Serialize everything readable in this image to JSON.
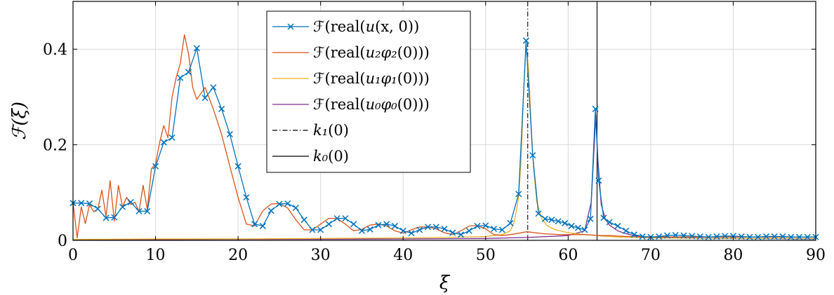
{
  "chart_data": {
    "type": "line",
    "xlabel": "ξ",
    "ylabel": "ℱ(ξ)",
    "xlim": [
      0,
      90
    ],
    "ylim": [
      0,
      0.5
    ],
    "xticks": [
      0,
      10,
      20,
      30,
      40,
      50,
      60,
      70,
      80,
      90
    ],
    "yticks": [
      0,
      0.2,
      0.4
    ],
    "ytick_labels": [
      "0",
      "0.2",
      "0.4"
    ],
    "grid": true,
    "legend_position": "top-center",
    "series": [
      {
        "name": "ℱ(real(u(x,0))",
        "color": "#0072bd",
        "marker": "x",
        "x": [
          0,
          1,
          2,
          3,
          4,
          5,
          6,
          7,
          8,
          9,
          10,
          11,
          12,
          13,
          14,
          15,
          16,
          17,
          18,
          19,
          20,
          21,
          22,
          23,
          24,
          25,
          26,
          27,
          28,
          29,
          30,
          31,
          32,
          33,
          34,
          35,
          36,
          37,
          38,
          39,
          40,
          41,
          42,
          43,
          44,
          45,
          46,
          47,
          48,
          49,
          50,
          51,
          52,
          53,
          54,
          54.9,
          55.7,
          56.4,
          57.2,
          58,
          58.8,
          59.6,
          60.4,
          61.2,
          62,
          62.7,
          63.3,
          63.7,
          64.3,
          65,
          66,
          67,
          68,
          69,
          70,
          71,
          72,
          73,
          74,
          75,
          76,
          77,
          78,
          79,
          80,
          81,
          82,
          83,
          84,
          85,
          86,
          87,
          88,
          89,
          90
        ],
        "y": [
          0.078,
          0.078,
          0.077,
          0.066,
          0.047,
          0.048,
          0.07,
          0.08,
          0.061,
          0.061,
          0.155,
          0.205,
          0.215,
          0.34,
          0.352,
          0.402,
          0.298,
          0.32,
          0.275,
          0.222,
          0.155,
          0.09,
          0.034,
          0.03,
          0.062,
          0.076,
          0.077,
          0.068,
          0.043,
          0.022,
          0.022,
          0.034,
          0.046,
          0.046,
          0.034,
          0.02,
          0.023,
          0.032,
          0.034,
          0.03,
          0.02,
          0.015,
          0.022,
          0.028,
          0.028,
          0.024,
          0.016,
          0.012,
          0.02,
          0.03,
          0.031,
          0.024,
          0.022,
          0.036,
          0.097,
          0.418,
          0.178,
          0.056,
          0.045,
          0.043,
          0.04,
          0.036,
          0.03,
          0.026,
          0.022,
          0.045,
          0.275,
          0.125,
          0.047,
          0.038,
          0.03,
          0.02,
          0.012,
          0.008,
          0.007,
          0.008,
          0.01,
          0.011,
          0.01,
          0.009,
          0.008,
          0.007,
          0.008,
          0.009,
          0.009,
          0.008,
          0.007,
          0.007,
          0.008,
          0.008,
          0.008,
          0.007,
          0.007,
          0.007,
          0.007
        ]
      },
      {
        "name": "ℱ(real(u₂φ₂(0)))",
        "color": "#d95319",
        "marker": "none",
        "x": [
          0,
          0.5,
          1,
          1.5,
          2,
          2.5,
          3,
          3.5,
          4,
          4.5,
          5,
          5.5,
          6,
          6.5,
          7,
          7.5,
          8,
          8.5,
          9,
          9.5,
          10,
          10.5,
          11,
          11.5,
          12,
          12.5,
          13,
          13.5,
          14,
          14.5,
          15,
          16,
          17,
          18,
          19,
          20,
          21,
          22,
          23,
          24,
          25,
          26,
          27,
          28,
          29,
          30,
          31,
          32,
          33,
          34,
          35,
          36,
          37,
          38,
          39,
          40,
          41,
          42,
          43,
          44,
          45,
          46,
          47,
          48,
          49,
          50,
          51,
          52,
          53,
          54,
          55,
          56,
          57,
          58,
          59,
          60,
          61,
          62,
          63,
          64,
          65,
          66,
          67,
          68,
          69,
          70,
          75,
          80,
          85,
          90
        ],
        "y": [
          0.08,
          0.005,
          0.07,
          0.035,
          0.075,
          0.06,
          0.065,
          0.105,
          0.05,
          0.125,
          0.04,
          0.115,
          0.07,
          0.09,
          0.075,
          0.08,
          0.06,
          0.115,
          0.065,
          0.15,
          0.16,
          0.205,
          0.24,
          0.215,
          0.3,
          0.34,
          0.37,
          0.43,
          0.39,
          0.32,
          0.295,
          0.32,
          0.275,
          0.222,
          0.155,
          0.09,
          0.034,
          0.03,
          0.062,
          0.076,
          0.077,
          0.068,
          0.043,
          0.022,
          0.022,
          0.034,
          0.046,
          0.046,
          0.034,
          0.02,
          0.023,
          0.032,
          0.034,
          0.03,
          0.02,
          0.015,
          0.022,
          0.028,
          0.028,
          0.024,
          0.016,
          0.012,
          0.02,
          0.03,
          0.031,
          0.024,
          0.012,
          0.01,
          0.012,
          0.015,
          0.018,
          0.016,
          0.014,
          0.013,
          0.012,
          0.012,
          0.012,
          0.012,
          0.011,
          0.01,
          0.01,
          0.009,
          0.008,
          0.008,
          0.007,
          0.007,
          0.007,
          0.007,
          0.007,
          0.007
        ]
      },
      {
        "name": "ℱ(real(u₁φ₁(0)))",
        "color": "#edb120",
        "marker": "none",
        "x": [
          0,
          10,
          20,
          30,
          40,
          45,
          50,
          52,
          53,
          53.5,
          54,
          54.3,
          54.6,
          54.9,
          55.2,
          55.5,
          55.8,
          56.2,
          56.8,
          57.5,
          58.5,
          60,
          62,
          63,
          64,
          66,
          70,
          80,
          90
        ],
        "y": [
          0.002,
          0.003,
          0.003,
          0.004,
          0.005,
          0.006,
          0.008,
          0.012,
          0.02,
          0.04,
          0.09,
          0.17,
          0.31,
          0.41,
          0.36,
          0.25,
          0.15,
          0.08,
          0.045,
          0.03,
          0.022,
          0.016,
          0.012,
          0.011,
          0.009,
          0.007,
          0.005,
          0.004,
          0.004
        ]
      },
      {
        "name": "ℱ(real(u₀φ₀(0)))",
        "color": "#7e2f8e",
        "marker": "none",
        "x": [
          0,
          20,
          40,
          50,
          55,
          60,
          62,
          62.8,
          63.1,
          63.35,
          63.6,
          64,
          64.5,
          65,
          66,
          67,
          68,
          70,
          80,
          90
        ],
        "y": [
          0.001,
          0.002,
          0.003,
          0.004,
          0.006,
          0.01,
          0.02,
          0.08,
          0.18,
          0.262,
          0.17,
          0.075,
          0.045,
          0.032,
          0.02,
          0.014,
          0.01,
          0.006,
          0.004,
          0.003
        ]
      }
    ],
    "vlines": [
      {
        "name": "k₁(0)",
        "x": 55.1,
        "style": "dashdot",
        "color": "#000000"
      },
      {
        "name": "k₀(0)",
        "x": 63.5,
        "style": "solid",
        "color": "#000000"
      }
    ],
    "legend_entries": [
      {
        "pre": "ℱ(real(",
        "it": "u",
        "post": "(x, 0))",
        "it2": ""
      },
      {
        "pre": "ℱ(real(",
        "it": "u₂φ₂",
        "post": "(0)))"
      },
      {
        "pre": "ℱ(real(",
        "it": "u₁φ₁",
        "post": "(0)))"
      },
      {
        "pre": "ℱ(real(",
        "it": "u₀φ₀",
        "post": "(0)))"
      },
      {
        "pre": "",
        "it": "k₁",
        "post": "(0)"
      },
      {
        "pre": "",
        "it": "k₀",
        "post": "(0)"
      }
    ]
  }
}
